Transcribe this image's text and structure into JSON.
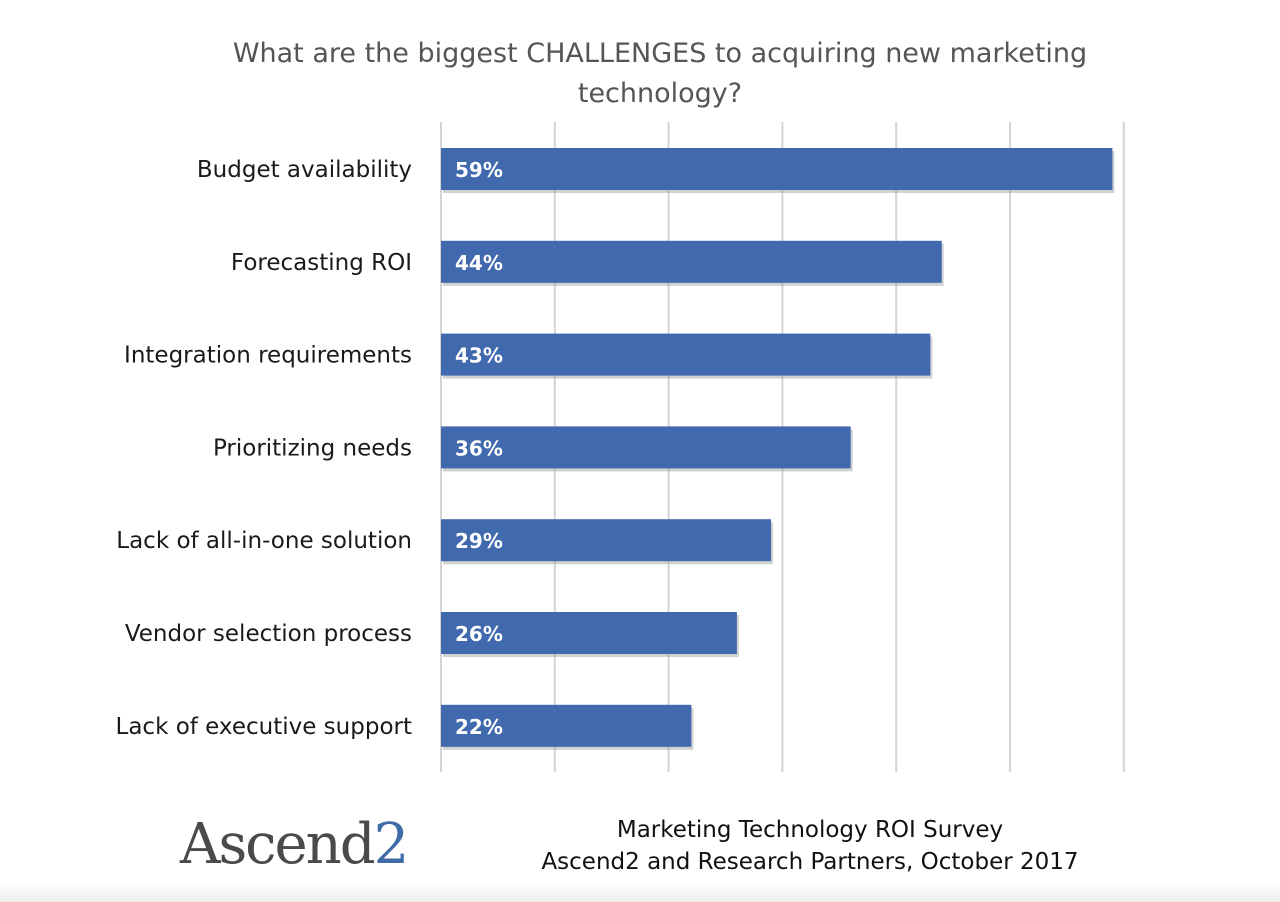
{
  "chart_data": {
    "type": "bar",
    "orientation": "horizontal",
    "title": "What are the biggest CHALLENGES to acquiring new marketing technology?",
    "categories": [
      "Budget availability",
      "Forecasting ROI",
      "Integration requirements",
      "Prioritizing needs",
      "Lack of all-in-one solution",
      "Vendor selection process",
      "Lack of executive support"
    ],
    "values": [
      59,
      44,
      43,
      36,
      29,
      26,
      22
    ],
    "data_labels": [
      "59%",
      "44%",
      "43%",
      "36%",
      "29%",
      "26%",
      "22%"
    ],
    "xlim": [
      0,
      60
    ],
    "grid": true,
    "legend": "none",
    "bar_color": "#4169ae",
    "label_color": "#ffffff"
  },
  "branding": {
    "logo_text": "Ascend",
    "logo_suffix": "2"
  },
  "source": {
    "line1": "Marketing Technology ROI Survey",
    "line2": "Ascend2 and Research Partners, October 2017"
  }
}
